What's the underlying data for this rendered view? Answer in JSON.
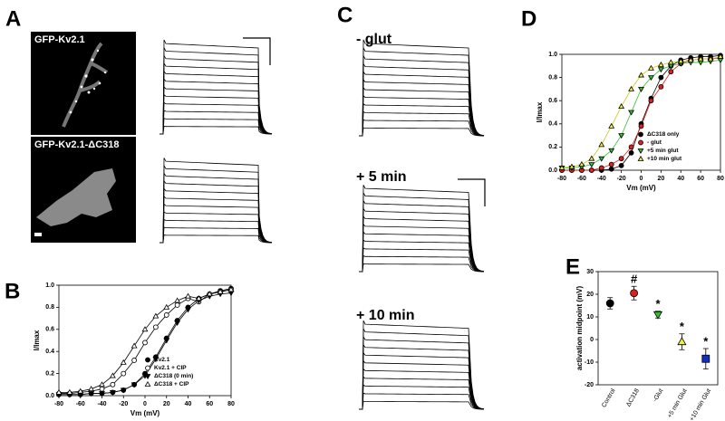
{
  "figure": {
    "panels": [
      "A",
      "C"
    ],
    "images": [
      "GFP-Kv2.1",
      "GFP-Kv2.1-ΔC318"
    ],
    "traces": [
      "- glut",
      "+ 5 min",
      "+ 10 min"
    ]
  },
  "chart_data": [
    {
      "type": "scatter",
      "panel": "B",
      "xlabel": "Vm (mV)",
      "ylabel": "I/Imax",
      "x": [
        -80,
        -70,
        -60,
        -50,
        -40,
        -30,
        -20,
        -10,
        0,
        10,
        20,
        30,
        40,
        50,
        60,
        70,
        80
      ],
      "xlim": [
        -80,
        80
      ],
      "ylim": [
        0,
        1.0
      ],
      "xticks": [
        -80,
        -60,
        -40,
        -20,
        0,
        20,
        40,
        60,
        80
      ],
      "yticks": [
        {
          "value": 0,
          "label": "0.0"
        },
        {
          "value": 0.2,
          "label": "0.2"
        },
        {
          "value": 0.4,
          "label": "0.4"
        },
        {
          "value": 0.6,
          "label": "0.6"
        },
        {
          "value": 0.8,
          "label": "0.8"
        },
        {
          "value": 1.0,
          "label": "1.0"
        }
      ],
      "legend": "lower right",
      "series": [
        {
          "name": "Kv2.1",
          "color": "#000000",
          "marker": "circle",
          "filled": true,
          "values": [
            0.01,
            0.01,
            0.01,
            0.02,
            0.02,
            0.03,
            0.05,
            0.1,
            0.2,
            0.35,
            0.52,
            0.68,
            0.8,
            0.88,
            0.92,
            0.95,
            0.97
          ]
        },
        {
          "name": "Kv2.1 + CIP",
          "color": "#000000",
          "marker": "circle",
          "filled": false,
          "values": [
            0.02,
            0.02,
            0.03,
            0.04,
            0.06,
            0.1,
            0.2,
            0.32,
            0.48,
            0.62,
            0.73,
            0.82,
            0.88,
            0.85,
            0.92,
            0.94,
            0.96
          ]
        },
        {
          "name": "ΔC318 (0 min)",
          "color": "#000000",
          "marker": "tri-down",
          "filled": true,
          "values": [
            0.01,
            0.01,
            0.01,
            0.02,
            0.02,
            0.03,
            0.05,
            0.1,
            0.18,
            0.33,
            0.5,
            0.66,
            0.78,
            0.86,
            0.9,
            0.92,
            0.93
          ]
        },
        {
          "name": "ΔC318 + CIP",
          "color": "#000000",
          "marker": "tri-up",
          "filled": false,
          "values": [
            0.03,
            0.03,
            0.04,
            0.06,
            0.1,
            0.18,
            0.3,
            0.45,
            0.6,
            0.72,
            0.8,
            0.86,
            0.9,
            0.88,
            0.92,
            0.94,
            0.96
          ]
        }
      ]
    },
    {
      "type": "scatter",
      "panel": "D",
      "xlabel": "Vm (mV)",
      "ylabel": "I/Imax",
      "x": [
        -80,
        -70,
        -60,
        -50,
        -40,
        -30,
        -20,
        -10,
        0,
        10,
        20,
        30,
        40,
        50,
        60,
        70,
        80
      ],
      "xlim": [
        -80,
        80
      ],
      "ylim": [
        0,
        1.0
      ],
      "xticks": [
        -80,
        -60,
        -40,
        -20,
        0,
        20,
        40,
        60,
        80
      ],
      "yticks": [
        {
          "value": 0,
          "label": "0.0"
        },
        {
          "value": 0.2,
          "label": "0.2"
        },
        {
          "value": 0.4,
          "label": "0.4"
        },
        {
          "value": 0.6,
          "label": "0.6"
        },
        {
          "value": 0.8,
          "label": "0.8"
        },
        {
          "value": 1.0,
          "label": "1.0"
        }
      ],
      "legend": "lower right",
      "series": [
        {
          "name": "ΔC318 only",
          "color": "#000000",
          "marker": "circle",
          "filled": true,
          "values": [
            0,
            0,
            0,
            0,
            0,
            0.01,
            0.04,
            0.15,
            0.4,
            0.62,
            0.8,
            0.9,
            0.95,
            0.97,
            0.98,
            0.98,
            0.99
          ]
        },
        {
          "name": "- glut",
          "color": "#e02020",
          "marker": "circle",
          "filled": true,
          "values": [
            0,
            0,
            0,
            0,
            0.02,
            0.05,
            0.1,
            0.2,
            0.38,
            0.6,
            0.72,
            0.85,
            0.92,
            0.95,
            0.96,
            0.96,
            0.97
          ]
        },
        {
          "name": "+5 min glut",
          "color": "#30c030",
          "marker": "tri-down",
          "filled": true,
          "values": [
            0.02,
            0.02,
            0.03,
            0.05,
            0.1,
            0.17,
            0.3,
            0.5,
            0.7,
            0.8,
            0.87,
            0.9,
            0.92,
            0.93,
            0.93,
            0.94,
            0.95
          ]
        },
        {
          "name": "+10 min glut",
          "color": "#f0f040",
          "marker": "tri-up",
          "filled": true,
          "values": [
            0.02,
            0.03,
            0.05,
            0.1,
            0.22,
            0.38,
            0.55,
            0.7,
            0.82,
            0.88,
            0.91,
            0.93,
            0.94,
            0.95,
            0.96,
            0.96,
            0.98
          ]
        }
      ]
    },
    {
      "type": "errorbar",
      "panel": "E",
      "ylabel": "activation midpoint (mV)",
      "categories": [
        "Control",
        "ΔC318",
        "-Glut",
        "+5 min Glut",
        "+10 min Glut"
      ],
      "values": [
        16,
        20.5,
        11,
        -1,
        -8.5
      ],
      "errors": [
        2.5,
        3,
        1.5,
        3.5,
        4.5
      ],
      "colors": [
        "#000000",
        "#e02020",
        "#30c030",
        "#f0f040",
        "#1030c0"
      ],
      "markers": [
        "circle",
        "circle",
        "tri-down",
        "tri-up",
        "square"
      ],
      "significance": [
        null,
        "#",
        "*",
        "*",
        "*"
      ],
      "ylim": [
        -20,
        30
      ],
      "yticks": [
        -20,
        -10,
        0,
        10,
        20,
        30
      ]
    }
  ]
}
